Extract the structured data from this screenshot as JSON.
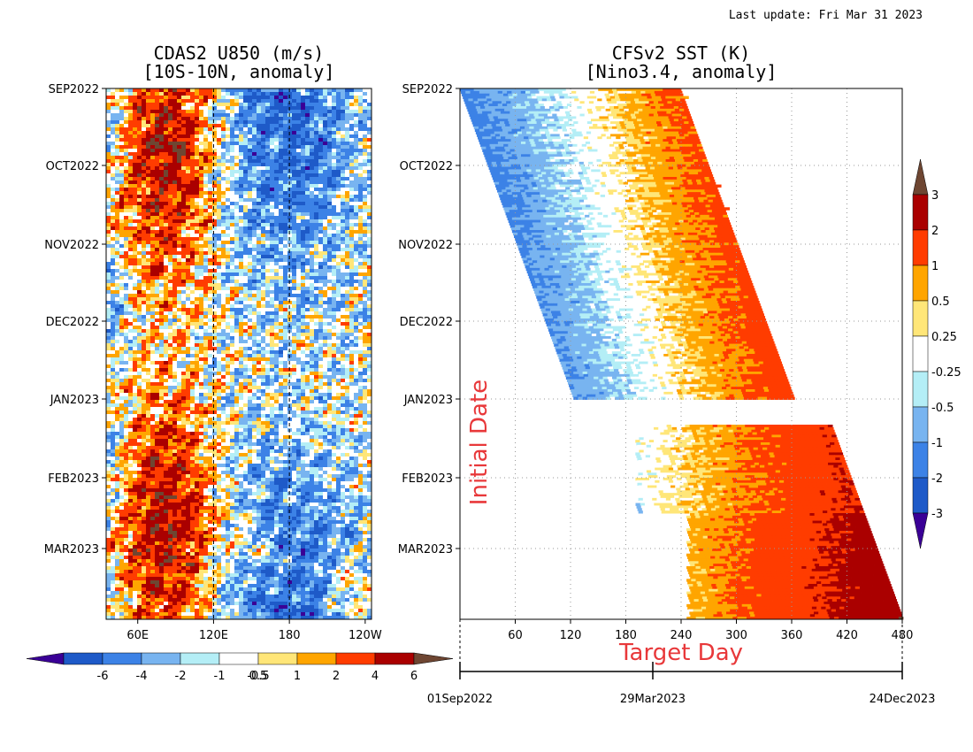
{
  "last_update": "Last update: Fri Mar 31 2023",
  "colors": {
    "levels": [
      "#3a0096",
      "#1e5ac8",
      "#3c82e6",
      "#78b4f0",
      "#b4eef6",
      "#ffffff",
      "#ffe678",
      "#ffa500",
      "#ff3c00",
      "#aa0000",
      "#6e4632"
    ],
    "accent_red": "#e8383a"
  },
  "chart_data": [
    {
      "type": "heatmap",
      "title": "CDAS2 U850 (m/s)",
      "subtitle": "[10S-10N, anomaly]",
      "x_ticks": [
        "60E",
        "120E",
        "180",
        "120W"
      ],
      "x_tick_values": [
        60,
        120,
        180,
        240
      ],
      "xlim": [
        35,
        245
      ],
      "y_ticks": [
        "SEP2022",
        "OCT2022",
        "NOV2022",
        "DEC2022",
        "JAN2023",
        "FEB2023",
        "MAR2023"
      ],
      "dashed_lines_at": [
        "120E",
        "180"
      ],
      "colorbar": {
        "orientation": "horizontal",
        "labels": [
          "-6",
          "-4",
          "-2",
          "-1",
          "-0.5",
          "0.5",
          "1",
          "2",
          "4",
          "6"
        ]
      }
    },
    {
      "type": "heatmap",
      "title": "CFSv2 SST (K)",
      "subtitle": "[Nino3.4, anomaly]",
      "xlabel": "Target Day",
      "ylabel": "Initial Date",
      "x_ticks": [
        "60",
        "120",
        "180",
        "240",
        "300",
        "360",
        "420",
        "480"
      ],
      "xlim": [
        0,
        480
      ],
      "y_ticks": [
        "SEP2022",
        "OCT2022",
        "NOV2022",
        "DEC2022",
        "JAN2023",
        "FEB2023",
        "MAR2023"
      ],
      "grid": true,
      "date_axis": {
        "labels": [
          "01Sep2022",
          "29Mar2023",
          "24Dec2023"
        ]
      },
      "colorbar": {
        "orientation": "vertical",
        "labels": [
          "3",
          "2",
          "1",
          "0.5",
          "0.25",
          "-0.25",
          "-0.5",
          "-1",
          "-2",
          "-3"
        ]
      }
    }
  ]
}
